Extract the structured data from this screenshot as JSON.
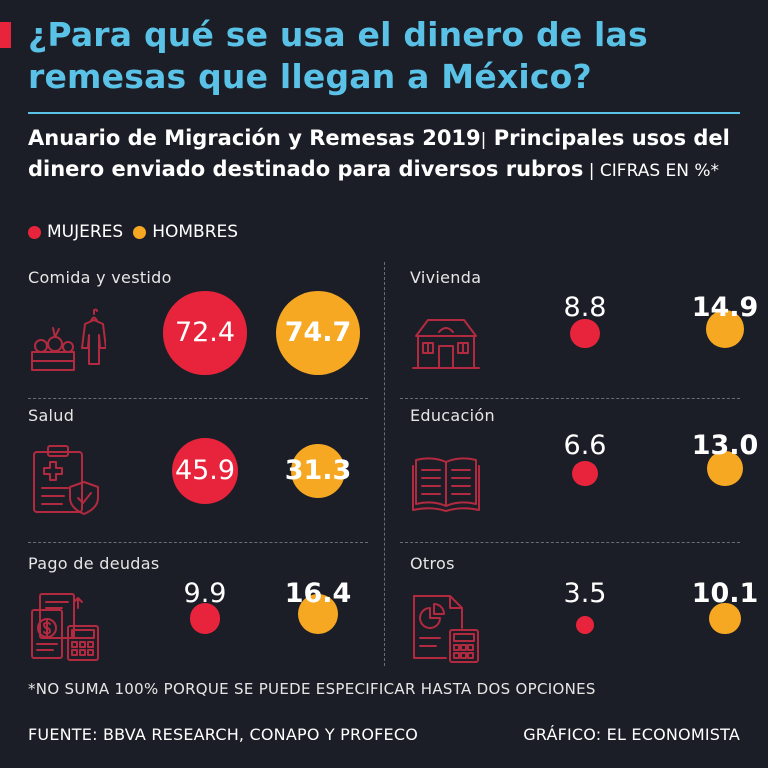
{
  "header": {
    "title": "¿Para qué se usa el dinero de las remesas que llegan a México?",
    "subtitle_bold": "Anuario de Migración y Remesas 2019",
    "subtitle_sep": "|",
    "subtitle_rest": " Principales usos del dinero enviado destinado para diversos rubros",
    "units_sep": " | ",
    "units": "CIFRAS EN %*"
  },
  "legend": {
    "mujeres": "MUJERES",
    "hombres": "HOMBRES"
  },
  "colors": {
    "mujeres": "#e8243c",
    "hombres": "#f6a823",
    "title": "#5bc2e7",
    "background": "#1b1e26",
    "icon": "#b22a40"
  },
  "chart_data": {
    "type": "bubble",
    "title": "Principales usos del dinero enviado destinado para diversos rubros",
    "units": "%",
    "series": [
      {
        "name": "MUJERES",
        "values": [
          72.4,
          8.8,
          45.9,
          6.6,
          9.9,
          3.5
        ]
      },
      {
        "name": "HOMBRES",
        "values": [
          74.7,
          14.9,
          31.3,
          13.0,
          16.4,
          10.1
        ]
      }
    ],
    "categories": [
      "Comida y vestido",
      "Vivienda",
      "Salud",
      "Educación",
      "Pago de deudas",
      "Otros"
    ],
    "value_labels": {
      "mujeres": [
        "72.4",
        "8.8",
        "45.9",
        "6.6",
        "9.9",
        "3.5"
      ],
      "hombres": [
        "74.7",
        "14.9",
        "31.3",
        "13.0",
        "16.4",
        "10.1"
      ]
    },
    "icons": [
      "food-clothing-icon",
      "house-icon",
      "health-clipboard-icon",
      "book-icon",
      "debt-payment-icon",
      "other-chart-icon"
    ]
  },
  "footer": {
    "footnote": "*NO SUMA 100% PORQUE SE PUEDE ESPECIFICAR HASTA DOS OPCIONES",
    "source": "FUENTE: BBVA RESEARCH, CONAPO Y PROFECO",
    "credit": "GRÁFICO: EL ECONOMISTA"
  }
}
